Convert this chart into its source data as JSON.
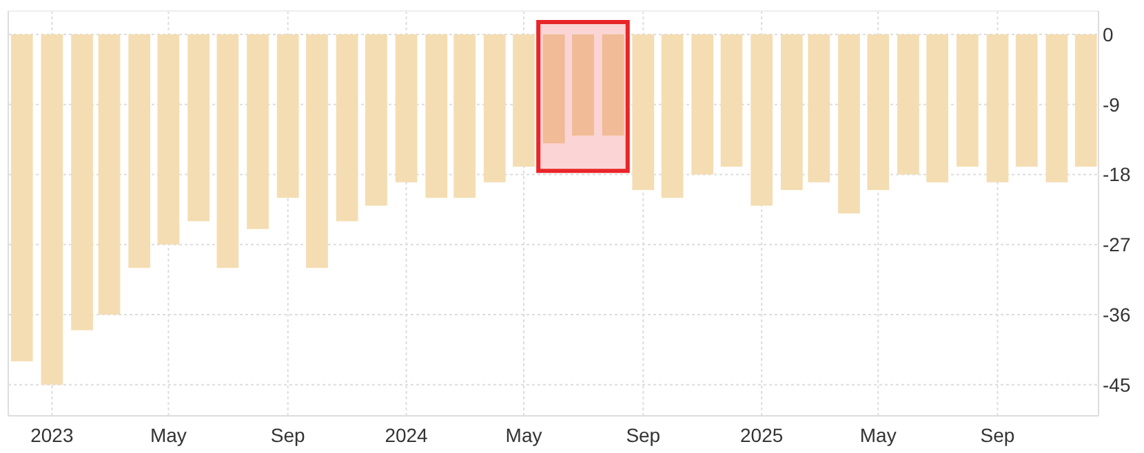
{
  "chart_data": {
    "type": "bar",
    "x": [
      "2022-12",
      "2023-01",
      "2023-02",
      "2023-03",
      "2023-04",
      "2023-05",
      "2023-06",
      "2023-07",
      "2023-08",
      "2023-09",
      "2023-10",
      "2023-11",
      "2023-12",
      "2024-01",
      "2024-02",
      "2024-03",
      "2024-04",
      "2024-05",
      "2024-06",
      "2024-07",
      "2024-08",
      "2024-09",
      "2024-10",
      "2024-11",
      "2024-12",
      "2025-01",
      "2025-02",
      "2025-03",
      "2025-04",
      "2025-05",
      "2025-06",
      "2025-07",
      "2025-08",
      "2025-09",
      "2025-10",
      "2025-11",
      "2025-12"
    ],
    "values": [
      -42,
      -45,
      -38,
      -36,
      -30,
      -27,
      -24,
      -30,
      -25,
      -21,
      -30,
      -24,
      -22,
      -19,
      -21,
      -21,
      -19,
      -17,
      -14,
      -13,
      -13,
      -20,
      -21,
      -18,
      -17,
      -22,
      -20,
      -19,
      -23,
      -20,
      -18,
      -19,
      -17,
      -19,
      -17,
      -19,
      -17
    ],
    "colors": [
      "#f4ddb2",
      "#f4ddb2",
      "#f4ddb2",
      "#f4ddb2",
      "#f4ddb2",
      "#f4ddb2",
      "#f4ddb2",
      "#f4ddb2",
      "#f4ddb2",
      "#f4ddb2",
      "#f4ddb2",
      "#f4ddb2",
      "#f4ddb2",
      "#f4ddb2",
      "#f4ddb2",
      "#f4ddb2",
      "#f4ddb2",
      "#f4ddb2",
      "#f0bb96",
      "#f0bb96",
      "#f0bb96",
      "#f4ddb2",
      "#f4ddb2",
      "#f4ddb2",
      "#f4ddb2",
      "#f4ddb2",
      "#f4ddb2",
      "#f4ddb2",
      "#f4ddb2",
      "#f4ddb2",
      "#f4ddb2",
      "#f4ddb2",
      "#f4ddb2",
      "#f4ddb2",
      "#f4ddb2",
      "#f4ddb2",
      "#f4ddb2"
    ],
    "xlim": [
      "2022-11-17",
      "2025-12-14"
    ],
    "xticks": [
      {
        "value": "2023-01",
        "label": "2023"
      },
      {
        "value": "2023-05",
        "label": "May"
      },
      {
        "value": "2023-09",
        "label": "Sep"
      },
      {
        "value": "2024-01",
        "label": "2024"
      },
      {
        "value": "2024-05",
        "label": "May"
      },
      {
        "value": "2024-09",
        "label": "Sep"
      },
      {
        "value": "2025-01",
        "label": "2025"
      },
      {
        "value": "2025-05",
        "label": "May"
      },
      {
        "value": "2025-09",
        "label": "Sep"
      }
    ],
    "ylim": [
      -49,
      3
    ],
    "yticks": [
      0,
      -9,
      -18,
      -27,
      -36,
      -45
    ],
    "bands": [
      {
        "axis": "x",
        "from": "2024-05-16",
        "to": "2024-08-16",
        "color": "#fbd5d5"
      }
    ],
    "grid": true
  }
}
